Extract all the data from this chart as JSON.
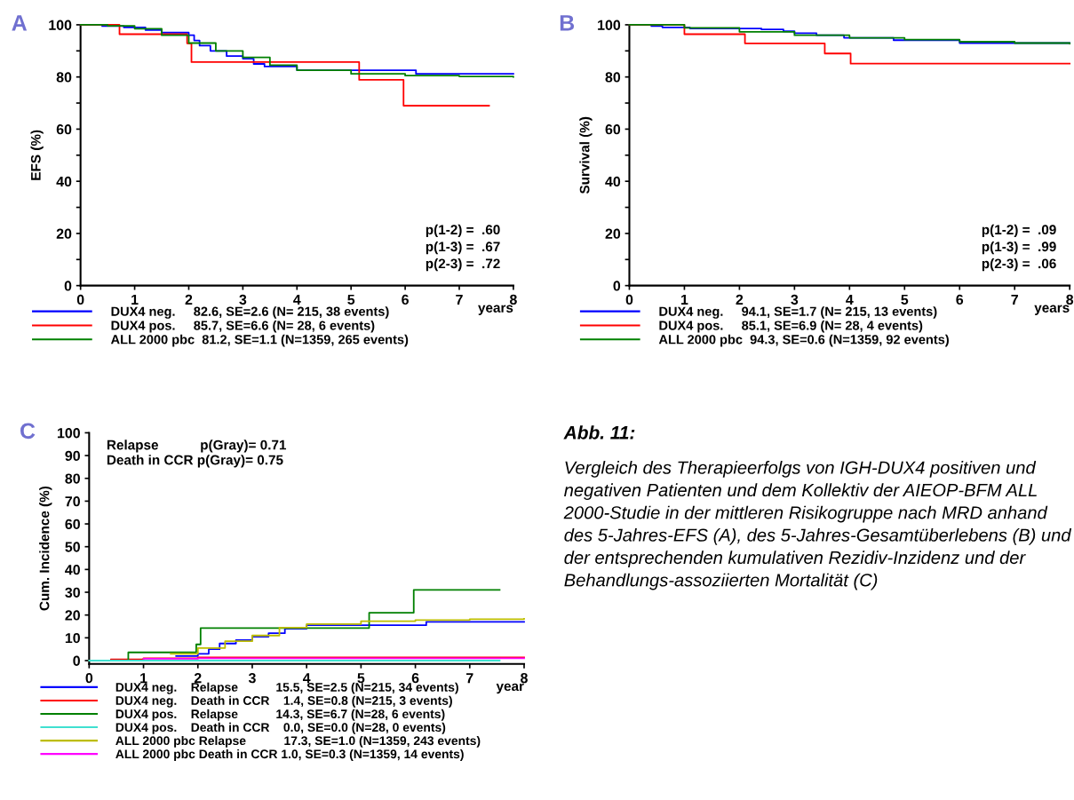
{
  "chart_data": [
    {
      "type": "step",
      "title": "A",
      "ylabel": "EFS (%)",
      "xlabel": "years",
      "xlim": [
        0,
        8
      ],
      "ylim": [
        0,
        100
      ],
      "xticks": [
        0,
        1,
        2,
        3,
        4,
        5,
        6,
        7,
        8
      ],
      "yticks": [
        0,
        {
          "value": 10,
          "label": null
        },
        20,
        {
          "value": 30,
          "label": null
        },
        40,
        {
          "value": 50,
          "label": null
        },
        60,
        {
          "value": 70,
          "label": null
        },
        80,
        {
          "value": 90,
          "label": null
        },
        100
      ],
      "legend": "bottom",
      "annotations": [
        "p(1-2) =  .60",
        "p(1-3) =  .67",
        "p(2-3) =  .72"
      ],
      "series": [
        {
          "name": "DUX4 neg.     82.6, SE=2.6 (N= 215, 38 events)",
          "color": "#0000ff",
          "x": [
            0,
            0.4,
            0.8,
            1.2,
            1.5,
            2.0,
            2.1,
            2.2,
            2.4,
            2.7,
            3.0,
            3.2,
            3.4,
            3.8,
            4.0,
            6.2,
            8.0
          ],
          "values": [
            100,
            99.5,
            99,
            98,
            97,
            96,
            94,
            92,
            90,
            88,
            87,
            85,
            84,
            84,
            82.6,
            81.2,
            81.2
          ]
        },
        {
          "name": "DUX4 pos.     85.7, SE=6.6 (N= 28, 6 events)",
          "color": "#ff0000",
          "x": [
            0,
            0.72,
            1.97,
            2.05,
            5.15,
            5.97,
            7.55
          ],
          "values": [
            100,
            96.4,
            92.9,
            85.7,
            78.9,
            69.0,
            69.0
          ]
        },
        {
          "name": "ALL 2000 pbc  81.2, SE=1.1 (N=1359, 265 events)",
          "color": "#008000",
          "x": [
            0,
            0.5,
            1,
            1.5,
            2,
            2.5,
            3,
            3.5,
            4,
            5,
            6,
            7,
            8
          ],
          "values": [
            100,
            99.6,
            98.5,
            96,
            93,
            90,
            87.5,
            84.5,
            82.6,
            81.2,
            80.5,
            80.2,
            80.0
          ]
        }
      ]
    },
    {
      "type": "step",
      "title": "B",
      "ylabel": "Survival (%)",
      "xlabel": "years",
      "xlim": [
        0,
        8
      ],
      "ylim": [
        0,
        100
      ],
      "xticks": [
        0,
        1,
        2,
        3,
        4,
        5,
        6,
        7,
        8
      ],
      "yticks": [
        0,
        {
          "value": 10,
          "label": null
        },
        20,
        {
          "value": 30,
          "label": null
        },
        40,
        {
          "value": 50,
          "label": null
        },
        60,
        {
          "value": 70,
          "label": null
        },
        80,
        {
          "value": 90,
          "label": null
        },
        100
      ],
      "legend": "bottom",
      "annotations": [
        "p(1-2) =  .09",
        "p(1-3) =  .99",
        "p(2-3) =  .06"
      ],
      "series": [
        {
          "name": "DUX4 neg.     94.1, SE=1.7 (N= 215, 13 events)",
          "color": "#0000ff",
          "x": [
            0,
            0.4,
            0.6,
            1.1,
            2.4,
            2.8,
            3.0,
            3.4,
            3.9,
            4.8,
            6.0,
            8.0
          ],
          "values": [
            100,
            99.5,
            99,
            98.6,
            98.2,
            97.5,
            96.8,
            96,
            95,
            94.1,
            93,
            93
          ]
        },
        {
          "name": "DUX4 pos.     85.1, SE=6.9 (N= 28, 4 events)",
          "color": "#ff0000",
          "x": [
            0,
            1.0,
            2.1,
            3.55,
            4.02,
            8.0
          ],
          "values": [
            100,
            96.4,
            92.9,
            89.0,
            85.1,
            85.1
          ]
        },
        {
          "name": "ALL 2000 pbc  94.3, SE=0.6 (N=1359, 92 events)",
          "color": "#008000",
          "x": [
            0,
            1,
            2,
            3,
            4,
            5,
            6,
            7,
            8
          ],
          "values": [
            100,
            98.8,
            97.3,
            96,
            95,
            94.3,
            93.5,
            93,
            92.8
          ]
        }
      ]
    },
    {
      "type": "step",
      "title": "C",
      "ylabel": "Cum. Incidence (%)",
      "xlabel": "year",
      "xlim": [
        0,
        8
      ],
      "ylim": [
        -1.5,
        100
      ],
      "xticks": [
        0,
        1,
        2,
        3,
        4,
        5,
        6,
        7,
        8
      ],
      "yticks": [
        0,
        10,
        20,
        30,
        40,
        50,
        60,
        70,
        80,
        90,
        100
      ],
      "legend": "bottom",
      "annotations": [
        "Relapse           p(Gray)= 0.71",
        "Death in CCR p(Gray)= 0.75"
      ],
      "series": [
        {
          "name": "DUX4 neg.    Relapse           15.5, SE=2.5 (N=215, 34 events)",
          "color": "#0000ff",
          "x": [
            1.6,
            2.0,
            2.2,
            2.4,
            2.7,
            3.0,
            3.3,
            3.6,
            4.0,
            6.2,
            8.0
          ],
          "values": [
            2,
            3,
            5,
            7.5,
            9,
            10.5,
            12,
            14,
            15.5,
            17,
            17
          ]
        },
        {
          "name": "DUX4 neg.    Death in CCR    1.4, SE=0.8 (N=215, 3 events)",
          "color": "#ff0000",
          "x": [
            0,
            0.4,
            1.0,
            2.0,
            8.0
          ],
          "values": [
            0,
            0.5,
            1.0,
            1.4,
            1.4
          ]
        },
        {
          "name": "DUX4 pos.    Relapse           14.3, SE=6.7 (N=28, 6 events)",
          "color": "#008000",
          "x": [
            0,
            0.72,
            1.97,
            2.05,
            5.15,
            5.97,
            7.55
          ],
          "values": [
            0,
            3.6,
            7.1,
            14.3,
            21.0,
            31.0,
            31.0
          ]
        },
        {
          "name": "DUX4 pos.    Death in CCR    0.0, SE=0.0 (N=28, 0 events)",
          "color": "#40e0d0",
          "x": [
            0,
            7.55
          ],
          "values": [
            0,
            0
          ]
        },
        {
          "name": "ALL 2000 pbc Relapse           17.3, SE=1.0 (N=1359, 243 events)",
          "color": "#bdbd00",
          "x": [
            1.5,
            2,
            2.5,
            3,
            3.5,
            4,
            5,
            6,
            7,
            8
          ],
          "values": [
            3,
            5.5,
            8.5,
            11,
            14.5,
            16,
            17.3,
            17.8,
            18.2,
            18.4
          ]
        },
        {
          "name": "ALL 2000 pbc Death in CCR 1.0, SE=0.3 (N=1359, 14 events)",
          "color": "#ff00ff",
          "x": [
            1,
            2,
            8
          ],
          "values": [
            0.8,
            1.0,
            1.0
          ]
        }
      ]
    },
    {
      "type": "other",
      "title": "Abb. 11:",
      "annotations": [
        "Vergleich des Therapieerfolgs von IGH-DUX4 positiven und negativen Patienten und dem Kollektiv der AIEOP-BFM ALL 2000-Studie in der mittleren Risikogruppe nach MRD anhand des 5-Jahres-EFS (A), des 5-Jahres-Gesamtüberlebens (B) und der entsprechenden kumulativen Rezidiv-Inzidenz und der Behandlungs-assoziierten Mortalität (C)"
      ]
    }
  ]
}
